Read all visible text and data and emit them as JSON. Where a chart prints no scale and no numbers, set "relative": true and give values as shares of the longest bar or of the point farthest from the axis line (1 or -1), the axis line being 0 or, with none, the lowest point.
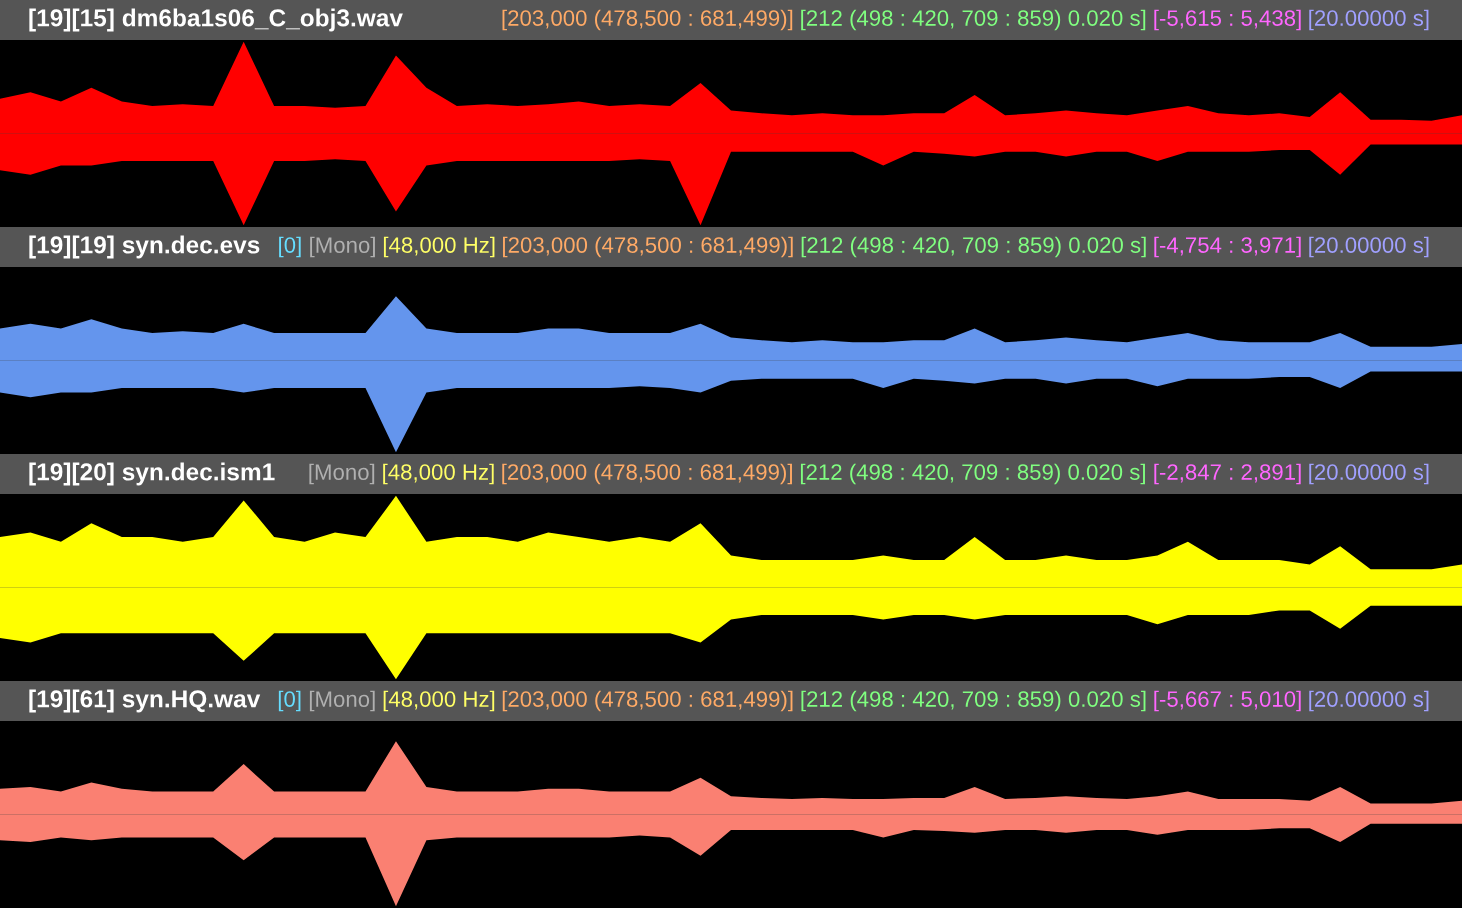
{
  "chart_data": [
    {
      "type": "area",
      "title": "[19][15] dm6ba1s06_C_obj3.wav",
      "annotations": [
        "[203,000 (478,500 : 681,499)]",
        "[212 (498 : 420, 709 : 859) 0.020 s]",
        "[-5,615 : 5,438]",
        "[20.00000 s]"
      ],
      "relative": true,
      "categories": [
        null,
        null,
        null,
        null,
        null,
        null,
        null,
        null,
        null,
        null,
        null,
        null,
        null,
        null,
        null,
        null,
        null,
        null,
        null,
        null,
        null,
        null,
        null,
        null,
        null,
        null,
        null,
        null,
        null,
        null,
        null,
        null,
        null,
        null,
        null,
        null,
        null,
        null,
        null,
        null,
        null,
        null,
        null,
        null,
        null,
        null,
        null,
        null,
        null
      ],
      "series": [
        {
          "color": "#ff0000",
          "values": [
            0.38,
            0.45,
            0.35,
            0.5,
            0.35,
            0.3,
            0.32,
            0.3,
            1.0,
            0.3,
            0.3,
            0.28,
            0.3,
            0.85,
            0.5,
            0.3,
            0.32,
            0.3,
            0.32,
            0.35,
            0.3,
            0.32,
            0.3,
            0.55,
            0.25,
            0.22,
            0.2,
            0.22,
            0.2,
            0.2,
            0.22,
            0.22,
            0.42,
            0.2,
            0.22,
            0.25,
            0.22,
            0.2,
            0.25,
            0.3,
            0.22,
            0.2,
            0.22,
            0.18,
            0.45,
            0.15,
            0.15,
            0.14,
            0.2
          ]
        },
        {
          "color": "#ff0000",
          "values": [
            -0.4,
            -0.45,
            -0.35,
            -0.35,
            -0.3,
            -0.3,
            -0.3,
            -0.3,
            -1.0,
            -0.3,
            -0.3,
            -0.28,
            -0.3,
            -0.85,
            -0.35,
            -0.3,
            -0.3,
            -0.3,
            -0.3,
            -0.3,
            -0.3,
            -0.28,
            -0.3,
            -1.0,
            -0.2,
            -0.2,
            -0.2,
            -0.2,
            -0.2,
            -0.35,
            -0.2,
            -0.22,
            -0.25,
            -0.2,
            -0.2,
            -0.25,
            -0.2,
            -0.2,
            -0.3,
            -0.2,
            -0.2,
            -0.2,
            -0.18,
            -0.18,
            -0.45,
            -0.12,
            -0.12,
            -0.12,
            -0.12
          ]
        }
      ]
    },
    {
      "type": "area",
      "title": "[19][19] syn.dec.evs",
      "annotations": [
        "[0]",
        "[Mono]",
        "[48,000 Hz]",
        "[203,000 (478,500 : 681,499)]",
        "[212 (498 : 420, 709 : 859) 0.020 s]",
        "[-4,754 : 3,971]",
        "[20.00000 s]"
      ],
      "relative": true,
      "categories": [
        null,
        null,
        null,
        null,
        null,
        null,
        null,
        null,
        null,
        null,
        null,
        null,
        null,
        null,
        null,
        null,
        null,
        null,
        null,
        null,
        null,
        null,
        null,
        null,
        null,
        null,
        null,
        null,
        null,
        null,
        null,
        null,
        null,
        null,
        null,
        null,
        null,
        null,
        null,
        null,
        null,
        null,
        null,
        null,
        null,
        null,
        null,
        null,
        null
      ],
      "series": [
        {
          "color": "#6495ed",
          "values": [
            0.35,
            0.4,
            0.35,
            0.45,
            0.35,
            0.3,
            0.32,
            0.3,
            0.4,
            0.3,
            0.3,
            0.3,
            0.3,
            0.7,
            0.35,
            0.3,
            0.3,
            0.3,
            0.35,
            0.35,
            0.3,
            0.3,
            0.3,
            0.4,
            0.25,
            0.22,
            0.2,
            0.22,
            0.2,
            0.2,
            0.22,
            0.22,
            0.35,
            0.2,
            0.22,
            0.25,
            0.22,
            0.2,
            0.25,
            0.3,
            0.22,
            0.2,
            0.2,
            0.2,
            0.3,
            0.15,
            0.15,
            0.15,
            0.18
          ]
        },
        {
          "color": "#6495ed",
          "values": [
            -0.35,
            -0.4,
            -0.35,
            -0.35,
            -0.3,
            -0.3,
            -0.3,
            -0.3,
            -0.35,
            -0.3,
            -0.3,
            -0.3,
            -0.3,
            -1.0,
            -0.35,
            -0.3,
            -0.3,
            -0.3,
            -0.3,
            -0.3,
            -0.3,
            -0.28,
            -0.3,
            -0.35,
            -0.22,
            -0.2,
            -0.2,
            -0.2,
            -0.2,
            -0.3,
            -0.2,
            -0.22,
            -0.25,
            -0.2,
            -0.2,
            -0.25,
            -0.2,
            -0.2,
            -0.28,
            -0.2,
            -0.2,
            -0.2,
            -0.18,
            -0.18,
            -0.3,
            -0.12,
            -0.12,
            -0.12,
            -0.12
          ]
        }
      ]
    },
    {
      "type": "area",
      "title": "[19][20] syn.dec.ism1",
      "annotations": [
        "[Mono]",
        "[48,000 Hz]",
        "[203,000 (478,500 : 681,499)]",
        "[212 (498 : 420, 709 : 859) 0.020 s]",
        "[-2,847 : 2,891]",
        "[20.00000 s]"
      ],
      "relative": true,
      "categories": [
        null,
        null,
        null,
        null,
        null,
        null,
        null,
        null,
        null,
        null,
        null,
        null,
        null,
        null,
        null,
        null,
        null,
        null,
        null,
        null,
        null,
        null,
        null,
        null,
        null,
        null,
        null,
        null,
        null,
        null,
        null,
        null,
        null,
        null,
        null,
        null,
        null,
        null,
        null,
        null,
        null,
        null,
        null,
        null,
        null,
        null,
        null,
        null,
        null
      ],
      "series": [
        {
          "color": "#ffff00",
          "values": [
            0.55,
            0.6,
            0.5,
            0.7,
            0.55,
            0.55,
            0.5,
            0.55,
            0.95,
            0.55,
            0.5,
            0.6,
            0.55,
            1.0,
            0.5,
            0.55,
            0.55,
            0.5,
            0.6,
            0.55,
            0.5,
            0.55,
            0.5,
            0.7,
            0.35,
            0.3,
            0.3,
            0.3,
            0.3,
            0.35,
            0.3,
            0.3,
            0.55,
            0.3,
            0.3,
            0.35,
            0.3,
            0.3,
            0.35,
            0.5,
            0.3,
            0.3,
            0.3,
            0.25,
            0.45,
            0.2,
            0.2,
            0.2,
            0.25
          ]
        },
        {
          "color": "#ffff00",
          "values": [
            -0.55,
            -0.6,
            -0.5,
            -0.5,
            -0.5,
            -0.5,
            -0.5,
            -0.5,
            -0.8,
            -0.5,
            -0.5,
            -0.5,
            -0.5,
            -1.0,
            -0.5,
            -0.5,
            -0.5,
            -0.5,
            -0.5,
            -0.5,
            -0.5,
            -0.5,
            -0.5,
            -0.6,
            -0.35,
            -0.3,
            -0.3,
            -0.3,
            -0.3,
            -0.35,
            -0.3,
            -0.3,
            -0.35,
            -0.3,
            -0.3,
            -0.3,
            -0.3,
            -0.3,
            -0.4,
            -0.3,
            -0.3,
            -0.3,
            -0.25,
            -0.25,
            -0.45,
            -0.2,
            -0.2,
            -0.2,
            -0.2
          ]
        }
      ]
    },
    {
      "type": "area",
      "title": "[19][61] syn.HQ.wav",
      "annotations": [
        "[0]",
        "[Mono]",
        "[48,000 Hz]",
        "[203,000 (478,500 : 681,499)]",
        "[212 (498 : 420, 709 : 859) 0.020 s]",
        "[-5,667 : 5,010]",
        "[20.00000 s]"
      ],
      "relative": true,
      "categories": [
        null,
        null,
        null,
        null,
        null,
        null,
        null,
        null,
        null,
        null,
        null,
        null,
        null,
        null,
        null,
        null,
        null,
        null,
        null,
        null,
        null,
        null,
        null,
        null,
        null,
        null,
        null,
        null,
        null,
        null,
        null,
        null,
        null,
        null,
        null,
        null,
        null,
        null,
        null,
        null,
        null,
        null,
        null,
        null,
        null,
        null,
        null,
        null,
        null
      ],
      "series": [
        {
          "color": "#fa8072",
          "values": [
            0.28,
            0.3,
            0.25,
            0.35,
            0.28,
            0.25,
            0.25,
            0.25,
            0.55,
            0.25,
            0.25,
            0.25,
            0.25,
            0.8,
            0.3,
            0.25,
            0.25,
            0.25,
            0.28,
            0.28,
            0.25,
            0.25,
            0.25,
            0.4,
            0.2,
            0.18,
            0.17,
            0.18,
            0.17,
            0.17,
            0.18,
            0.18,
            0.3,
            0.17,
            0.18,
            0.2,
            0.18,
            0.17,
            0.2,
            0.25,
            0.17,
            0.17,
            0.17,
            0.15,
            0.3,
            0.12,
            0.12,
            0.12,
            0.15
          ]
        },
        {
          "color": "#fa8072",
          "values": [
            -0.28,
            -0.3,
            -0.25,
            -0.28,
            -0.25,
            -0.25,
            -0.25,
            -0.25,
            -0.5,
            -0.25,
            -0.25,
            -0.25,
            -0.25,
            -1.0,
            -0.28,
            -0.25,
            -0.25,
            -0.25,
            -0.25,
            -0.25,
            -0.25,
            -0.23,
            -0.25,
            -0.45,
            -0.17,
            -0.17,
            -0.17,
            -0.17,
            -0.17,
            -0.25,
            -0.17,
            -0.18,
            -0.2,
            -0.17,
            -0.17,
            -0.2,
            -0.17,
            -0.17,
            -0.22,
            -0.17,
            -0.17,
            -0.17,
            -0.15,
            -0.15,
            -0.3,
            -0.1,
            -0.1,
            -0.1,
            -0.1
          ]
        }
      ]
    }
  ]
}
